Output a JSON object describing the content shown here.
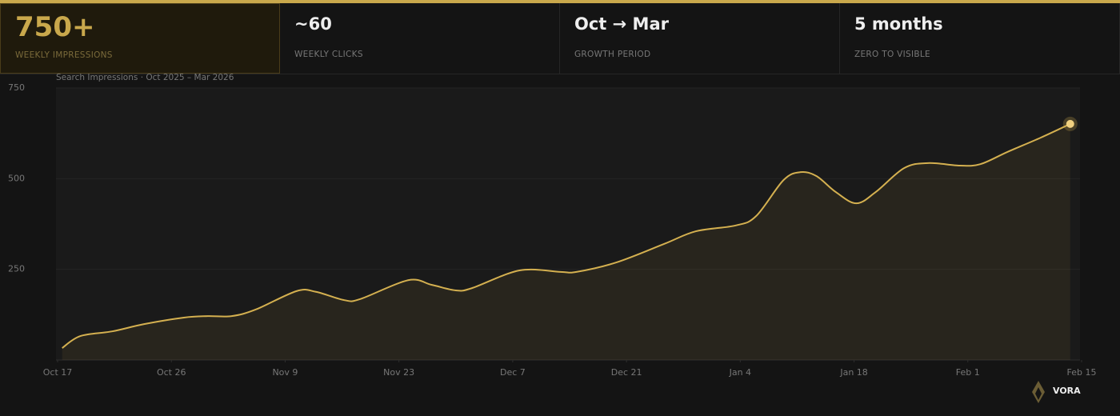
{
  "stats": [
    {
      "value": "750+",
      "label": "WEEKLY IMPRESSIONS"
    },
    {
      "value": "~60",
      "label": "WEEKLY CLICKS"
    },
    {
      "value": "Oct → Mar",
      "label": "GROWTH PERIOD"
    },
    {
      "value": "5 months",
      "label": "ZERO TO VISIBLE"
    }
  ],
  "chart_data": {
    "type": "area",
    "subtitle": "Search Impressions  ·  Oct 2025 – Mar 2026",
    "color": "#d4b050",
    "grid": true,
    "xlim": [
      0,
      9
    ],
    "xticks": [
      {
        "value": 0,
        "label": "Oct 17"
      },
      {
        "value": 1,
        "label": "Oct 26"
      },
      {
        "value": 2,
        "label": "Nov 9"
      },
      {
        "value": 3,
        "label": "Nov 23"
      },
      {
        "value": 4,
        "label": "Dec 7"
      },
      {
        "value": 5,
        "label": "Dec 21"
      },
      {
        "value": 6,
        "label": "Jan 4"
      },
      {
        "value": 7,
        "label": "Jan 18"
      },
      {
        "value": 8,
        "label": "Feb 1"
      },
      {
        "value": 9,
        "label": "Feb 15"
      }
    ],
    "ylim": [
      0,
      750
    ],
    "yticks": [
      250,
      500,
      750
    ],
    "x": [
      0.04,
      0.2,
      0.48,
      0.76,
      1.11,
      1.32,
      1.53,
      1.74,
      2.1,
      2.27,
      2.52,
      2.66,
      3.08,
      3.29,
      3.5,
      3.64,
      4.06,
      4.42,
      4.56,
      4.91,
      5.33,
      5.61,
      5.96,
      6.14,
      6.38,
      6.53,
      6.67,
      6.84,
      7.02,
      7.19,
      7.44,
      7.65,
      7.93,
      8.11,
      8.35,
      8.64,
      8.9
    ],
    "values": [
      33,
      66,
      79,
      99,
      117,
      121,
      121,
      139,
      190,
      188,
      165,
      168,
      220,
      207,
      192,
      198,
      247,
      243,
      243,
      269,
      320,
      355,
      371,
      397,
      496,
      518,
      507,
      463,
      432,
      463,
      529,
      543,
      536,
      540,
      574,
      613,
      651
    ]
  },
  "brand": "VORA"
}
